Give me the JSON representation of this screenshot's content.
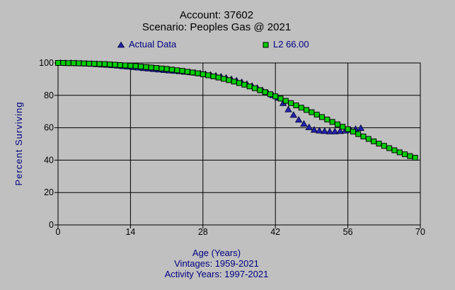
{
  "window": {
    "background_color": "#c0c0c0"
  },
  "header": {
    "title_line1": "Account: 37602",
    "title_line2": "Scenario: Peoples Gas @ 2021"
  },
  "legend": {
    "items": [
      {
        "label": "Actual Data",
        "marker": "triangle",
        "color": "#2222aa"
      },
      {
        "label": "L2 66.00",
        "marker": "square",
        "color": "#00ce00"
      }
    ]
  },
  "axes": {
    "ylabel": "Percent Surviving",
    "xlabel": "Age (Years)"
  },
  "footer": {
    "xlabel": "Age (Years)",
    "vintages": "Vintages: 1959-2021",
    "activity_years": "Activity Years: 1997-2021"
  },
  "colors": {
    "background": "#c0c0c0",
    "grid": "#000000",
    "tick_label": "#000000",
    "title_text": "#000000",
    "secondary_text": "#000080",
    "actual_marker": "#2222aa",
    "curve_marker": "#00ce00"
  },
  "chart_data": {
    "type": "scatter",
    "title": "Account: 37602 — Scenario: Peoples Gas @ 2021",
    "xlabel": "Age (Years)",
    "ylabel": "Percent Surviving",
    "xlim": [
      0,
      70
    ],
    "ylim": [
      0,
      100
    ],
    "x_ticks": [
      0,
      14,
      28,
      42,
      56,
      70
    ],
    "y_ticks": [
      0,
      20,
      40,
      60,
      80,
      100
    ],
    "grid": true,
    "legend_position": "top",
    "series": [
      {
        "name": "Actual Data",
        "marker": "triangle",
        "color": "#2222aa",
        "x": [
          0.5,
          1.5,
          2.5,
          3.5,
          4.5,
          5.5,
          6.5,
          7.5,
          8.5,
          9.5,
          10.5,
          11.5,
          12.5,
          13.5,
          14.5,
          15.5,
          16.5,
          17.5,
          18.5,
          19.5,
          20.5,
          21.5,
          22.5,
          23.5,
          24.5,
          25.5,
          26.5,
          27.5,
          28.5,
          29.5,
          30.5,
          31.5,
          32.5,
          33.5,
          34.5,
          35.5,
          36.5,
          37.5,
          38.5,
          39.5,
          40.5,
          41.5,
          42.5,
          43.5,
          44.5,
          45.5,
          46.5,
          47.5,
          48.5,
          49.5,
          50.5,
          51.5,
          52.5,
          53.5,
          54.5,
          55.5,
          56.5,
          57.5,
          58.5
        ],
        "y": [
          100.0,
          99.9,
          99.9,
          99.8,
          99.7,
          99.6,
          99.4,
          99.2,
          99.0,
          98.8,
          98.6,
          98.3,
          98.0,
          97.7,
          97.4,
          97.1,
          96.8,
          96.5,
          96.2,
          95.9,
          95.6,
          95.3,
          95.1,
          94.8,
          94.5,
          94.2,
          93.9,
          93.5,
          93.1,
          92.6,
          92.1,
          91.5,
          90.8,
          90.0,
          89.1,
          88.1,
          87.0,
          85.8,
          84.5,
          83.1,
          81.6,
          80.1,
          78.5,
          75.2,
          71.3,
          67.9,
          64.9,
          62.4,
          60.3,
          58.7,
          58.2,
          57.9,
          57.7,
          57.7,
          57.9,
          58.2,
          58.7,
          59.2,
          59.8
        ]
      },
      {
        "name": "L2 66.00",
        "marker": "square",
        "color": "#00ce00",
        "x": [
          0,
          1,
          2,
          3,
          4,
          5,
          6,
          7,
          8,
          9,
          10,
          11,
          12,
          13,
          14,
          15,
          16,
          17,
          18,
          19,
          20,
          21,
          22,
          23,
          24,
          25,
          26,
          27,
          28,
          29,
          30,
          31,
          32,
          33,
          34,
          35,
          36,
          37,
          38,
          39,
          40,
          41,
          42,
          43,
          44,
          45,
          46,
          47,
          48,
          49,
          50,
          51,
          52,
          53,
          54,
          55,
          56,
          57,
          58,
          59,
          60,
          61,
          62,
          63,
          64,
          65,
          66,
          67,
          68,
          69
        ],
        "y": [
          100.0,
          100.0,
          99.9,
          99.9,
          99.8,
          99.7,
          99.6,
          99.5,
          99.4,
          99.3,
          99.1,
          98.9,
          98.7,
          98.5,
          98.3,
          98.1,
          97.8,
          97.5,
          97.2,
          96.9,
          96.6,
          96.3,
          95.9,
          95.5,
          95.1,
          94.6,
          94.1,
          93.6,
          93.0,
          92.4,
          91.7,
          91.0,
          90.2,
          89.4,
          88.5,
          87.6,
          86.6,
          85.5,
          84.4,
          83.2,
          82.0,
          80.7,
          79.4,
          78.0,
          76.6,
          75.2,
          73.8,
          72.4,
          71.0,
          69.6,
          68.1,
          66.6,
          65.1,
          63.6,
          62.1,
          60.6,
          59.1,
          57.6,
          56.1,
          54.6,
          53.1,
          51.6,
          50.2,
          48.8,
          47.4,
          46.1,
          44.8,
          43.6,
          42.5,
          41.5
        ]
      }
    ]
  }
}
